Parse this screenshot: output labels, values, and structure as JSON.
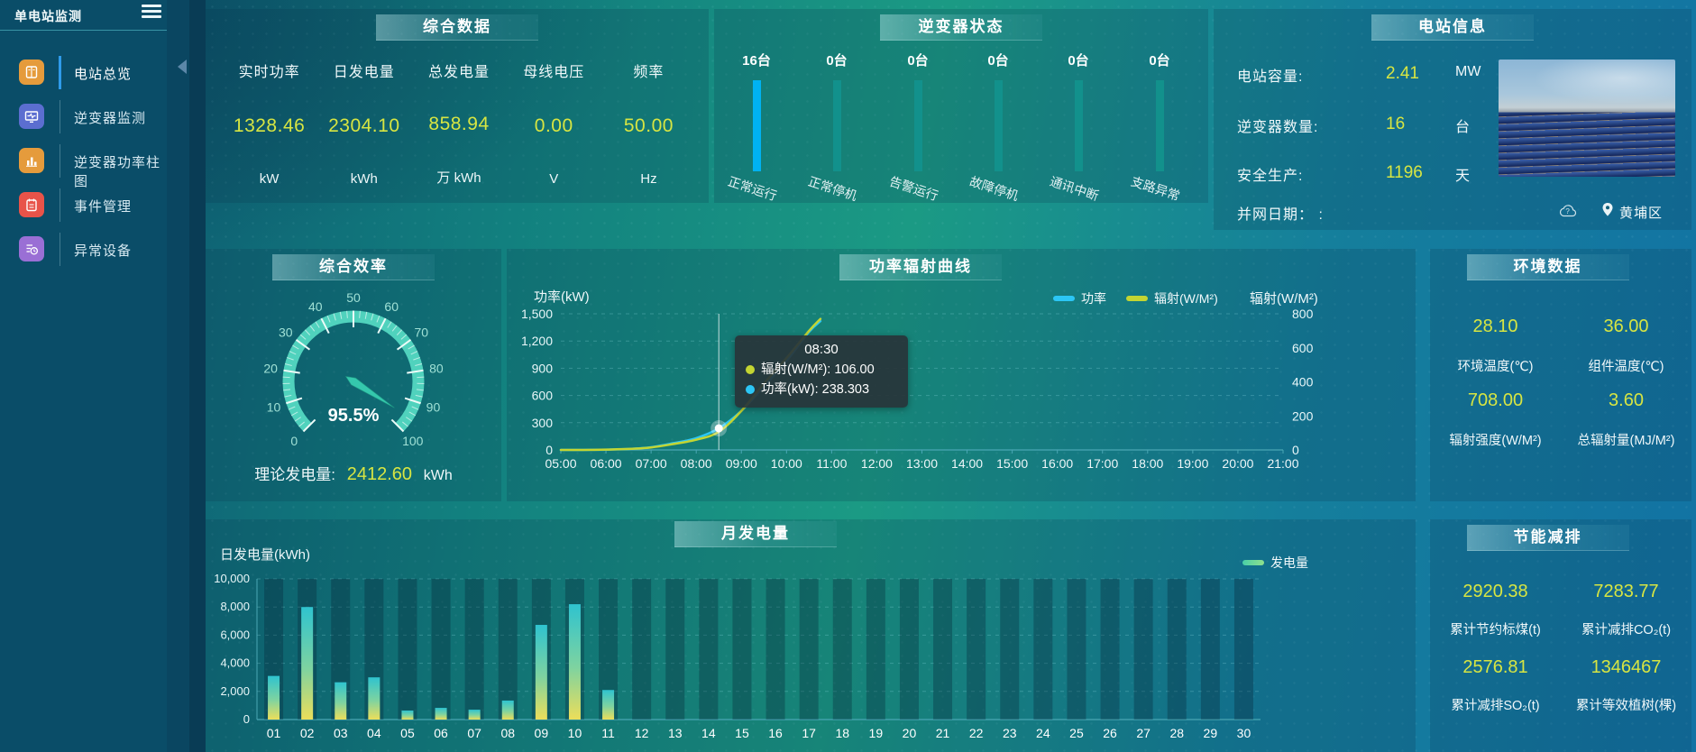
{
  "app": {
    "title": "单电站监测"
  },
  "sidebar": {
    "items": [
      {
        "label": "电站总览",
        "color": "#e59b3c",
        "active": true
      },
      {
        "label": "逆变器监测",
        "color": "#5b6ed0",
        "active": false
      },
      {
        "label": "逆变器功率柱图",
        "color": "#e59b3c",
        "active": false
      },
      {
        "label": "事件管理",
        "color": "#e85349",
        "active": false
      },
      {
        "label": "异常设备",
        "color": "#9a6fd5",
        "active": false
      }
    ]
  },
  "panels": {
    "comprehensive": {
      "title": "综合数据",
      "metrics": [
        {
          "label": "实时功率",
          "value": "1328.46",
          "unit": "kW"
        },
        {
          "label": "日发电量",
          "value": "2304.10",
          "unit": "kWh"
        },
        {
          "label": "总发电量",
          "value": "858.94",
          "unit": "万 kWh"
        },
        {
          "label": "母线电压",
          "value": "0.00",
          "unit": "V"
        },
        {
          "label": "频率",
          "value": "50.00",
          "unit": "Hz"
        }
      ]
    },
    "inverter_status": {
      "title": "逆变器状态",
      "bars": [
        {
          "count": "16台",
          "label": "正常运行",
          "color": "#00b2f2"
        },
        {
          "count": "0台",
          "label": "正常停机",
          "color": "#12918c"
        },
        {
          "count": "0台",
          "label": "告警运行",
          "color": "#12918c"
        },
        {
          "count": "0台",
          "label": "故障停机",
          "color": "#12918c"
        },
        {
          "count": "0台",
          "label": "通讯中断",
          "color": "#12918c"
        },
        {
          "count": "0台",
          "label": "支路异常",
          "color": "#12918c"
        }
      ]
    },
    "station_info": {
      "title": "电站信息",
      "rows": [
        {
          "label": "电站容量:",
          "value": "2.41",
          "unit": "MW"
        },
        {
          "label": "逆变器数量:",
          "value": "16",
          "unit": "台"
        },
        {
          "label": "安全生产:",
          "value": "1196",
          "unit": "天"
        },
        {
          "label": "并网日期： :",
          "value": "",
          "unit": ""
        }
      ],
      "location": "黄埔区"
    },
    "efficiency": {
      "title": "综合效率",
      "gauge": {
        "min": 0,
        "max": 100,
        "value": 95.5,
        "display": "95.5%",
        "tick_labels": [
          0,
          10,
          20,
          30,
          40,
          50,
          60,
          70,
          80,
          90,
          100
        ]
      },
      "theory": {
        "label": "理论发电量:",
        "value": "2412.60",
        "unit": "kWh"
      }
    },
    "power_curve": {
      "title": "功率辐射曲线"
    },
    "environment": {
      "title": "环境数据",
      "cells": [
        {
          "value": "28.10",
          "label": "环境温度(℃)"
        },
        {
          "value": "36.00",
          "label": "组件温度(℃)"
        },
        {
          "value": "708.00",
          "label": "辐射强度(W/M²)"
        },
        {
          "value": "3.60",
          "label": "总辐射量(MJ/M²)"
        }
      ]
    },
    "monthly": {
      "title": "月发电量",
      "ylabel": "日发电量(kWh)"
    },
    "energy_saving": {
      "title": "节能减排",
      "cells": [
        {
          "value": "2920.38",
          "label": "累计节约标煤(t)"
        },
        {
          "value": "7283.77",
          "label": "累计减排CO₂(t)"
        },
        {
          "value": "2576.81",
          "label": "累计减排SO₂(t)"
        },
        {
          "value": "1346467",
          "label": "累计等效植树(棵)"
        }
      ]
    }
  },
  "chart_data": [
    {
      "id": "power_radiation",
      "type": "line",
      "title": "功率辐射曲线",
      "x_hours": [
        5,
        5.5,
        6,
        6.5,
        7,
        7.5,
        8,
        8.5,
        9,
        9.5,
        10,
        10.5,
        10.75
      ],
      "x_tick_labels": [
        "05:00",
        "06:00",
        "07:00",
        "08:00",
        "09:00",
        "10:00",
        "11:00",
        "12:00",
        "13:00",
        "14:00",
        "15:00",
        "16:00",
        "17:00",
        "18:00",
        "19:00",
        "20:00",
        "21:00"
      ],
      "xlim": [
        5,
        21
      ],
      "left_axis": {
        "label": "功率(kW)",
        "ticks": [
          0,
          300,
          600,
          900,
          1200,
          1500
        ],
        "max": 1500
      },
      "right_axis": {
        "label": "辐射(W/M²)",
        "ticks": [
          0,
          200,
          400,
          600,
          800
        ],
        "max": 800
      },
      "series": [
        {
          "name": "功率",
          "color": "#2cc6f5",
          "axis": "left",
          "values": [
            0,
            0,
            3,
            10,
            30,
            75,
            130,
            238.3,
            430,
            700,
            980,
            1300,
            1420
          ]
        },
        {
          "name": "辐射(W/M²)",
          "color": "#c3d532",
          "axis": "right",
          "values": [
            0,
            0,
            2,
            6,
            15,
            35,
            60,
            106,
            230,
            390,
            540,
            700,
            770
          ]
        }
      ],
      "tooltip": {
        "time": "08:30",
        "x_hour": 8.5,
        "power_value": 238.303,
        "radiation_value": 106,
        "lines": [
          {
            "color": "#c3d532",
            "text": "辐射(W/M²): 106.00"
          },
          {
            "color": "#2cc6f5",
            "text": "功率(kW): 238.303"
          }
        ]
      }
    },
    {
      "id": "monthly_generation",
      "type": "bar",
      "title": "月发电量",
      "ylabel": "日发电量(kWh)",
      "legend": "发电量",
      "categories": [
        "01",
        "02",
        "03",
        "04",
        "05",
        "06",
        "07",
        "08",
        "09",
        "10",
        "11",
        "12",
        "13",
        "14",
        "15",
        "16",
        "17",
        "18",
        "19",
        "20",
        "21",
        "22",
        "23",
        "24",
        "25",
        "26",
        "27",
        "28",
        "29",
        "30"
      ],
      "values": [
        3100,
        8000,
        2650,
        3000,
        640,
        830,
        700,
        1350,
        6730,
        8200,
        2100,
        0,
        0,
        0,
        0,
        0,
        0,
        0,
        0,
        0,
        0,
        0,
        0,
        0,
        0,
        0,
        0,
        0,
        0,
        0
      ],
      "y_ticks": [
        0,
        2000,
        4000,
        6000,
        8000,
        10000
      ],
      "ylim": [
        0,
        10000
      ],
      "bar_gradient": [
        "#2fc3cf",
        "#7ed3a0",
        "#ecde5a"
      ]
    }
  ]
}
